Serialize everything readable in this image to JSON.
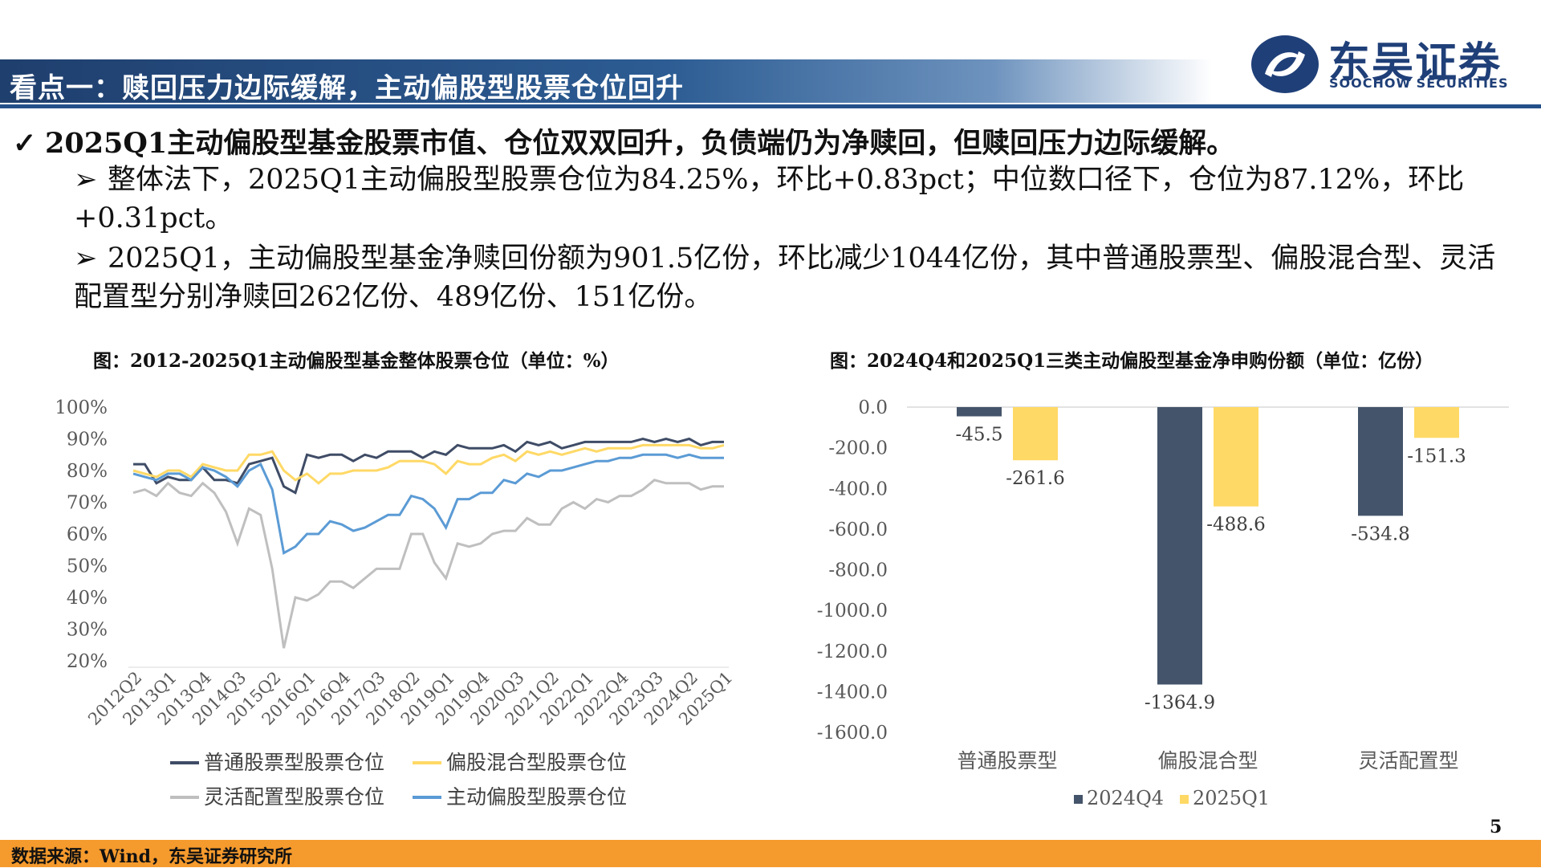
{
  "header": {
    "title": "看点一：赎回压力边际缓解，主动偏股型股票仓位回升",
    "logo_cn": "东吴证券",
    "logo_en": "SOOCHOW SECURITIES"
  },
  "bullets": {
    "check": "✓",
    "main": "2025Q1主动偏股型基金股票市值、仓位双双回升，负债端仍为净赎回，但赎回压力边际缓解。",
    "arrow": "➢",
    "sub1": "整体法下，2025Q1主动偏股型股票仓位为84.25%，环比+0.83pct；中位数口径下，仓位为87.12%，环比+0.31pct。",
    "sub2": "2025Q1，主动偏股型基金净赎回份额为901.5亿份，环比减少1044亿份，其中普通股票型、偏股混合型、灵活配置型分别净赎回262亿份、489亿份、151亿份。"
  },
  "colors": {
    "dark_navy": "#3f4c66",
    "yellow": "#ffd966",
    "gray": "#bfbfbf",
    "blue": "#5b9bd5",
    "orange_footer": "#f59a2d"
  },
  "footer": {
    "source": "数据来源：Wind，东吴证券研究所",
    "page": "5"
  },
  "chart_data": [
    {
      "type": "line",
      "title": "图：2012-2025Q1主动偏股型基金整体股票仓位（单位：%）",
      "ylim": [
        20,
        100
      ],
      "yticks": [
        "100%",
        "90%",
        "80%",
        "70%",
        "60%",
        "50%",
        "40%",
        "30%",
        "20%"
      ],
      "xtick_labels": [
        "2012Q2",
        "2013Q1",
        "2013Q4",
        "2014Q3",
        "2015Q2",
        "2016Q1",
        "2016Q4",
        "2017Q3",
        "2018Q2",
        "2019Q1",
        "2019Q4",
        "2020Q3",
        "2021Q2",
        "2022Q1",
        "2022Q4",
        "2023Q3",
        "2024Q2",
        "2025Q1"
      ],
      "x": [
        "2012Q2",
        "2012Q3",
        "2012Q4",
        "2013Q1",
        "2013Q2",
        "2013Q3",
        "2013Q4",
        "2014Q1",
        "2014Q2",
        "2014Q3",
        "2014Q4",
        "2015Q1",
        "2015Q2",
        "2015Q3",
        "2015Q4",
        "2016Q1",
        "2016Q2",
        "2016Q3",
        "2016Q4",
        "2017Q1",
        "2017Q2",
        "2017Q3",
        "2017Q4",
        "2018Q1",
        "2018Q2",
        "2018Q3",
        "2018Q4",
        "2019Q1",
        "2019Q2",
        "2019Q3",
        "2019Q4",
        "2020Q1",
        "2020Q2",
        "2020Q3",
        "2020Q4",
        "2021Q1",
        "2021Q2",
        "2021Q3",
        "2021Q4",
        "2022Q1",
        "2022Q2",
        "2022Q3",
        "2022Q4",
        "2023Q1",
        "2023Q2",
        "2023Q3",
        "2023Q4",
        "2024Q1",
        "2024Q2",
        "2024Q3",
        "2024Q4",
        "2025Q1"
      ],
      "series": [
        {
          "name": "普通股票型股票仓位",
          "color": "#3f4c66",
          "values": [
            82,
            82,
            76,
            78,
            77,
            77,
            81,
            77,
            77,
            76,
            82,
            83,
            84,
            75,
            73,
            85,
            84,
            85,
            85,
            83,
            85,
            84,
            86,
            86,
            86,
            84,
            86,
            85,
            88,
            87,
            87,
            87,
            88,
            86,
            89,
            88,
            89,
            87,
            88,
            89,
            89,
            89,
            89,
            89,
            90,
            89,
            90,
            89,
            90,
            88,
            89,
            89
          ]
        },
        {
          "name": "偏股混合型股票仓位",
          "color": "#ffd966",
          "values": [
            80,
            79,
            78,
            80,
            80,
            78,
            82,
            81,
            80,
            80,
            85,
            85,
            86,
            80,
            77,
            79,
            76,
            79,
            79,
            80,
            80,
            80,
            81,
            83,
            83,
            83,
            82,
            79,
            83,
            82,
            82,
            84,
            85,
            83,
            86,
            85,
            86,
            85,
            86,
            87,
            86,
            87,
            87,
            87,
            88,
            88,
            88,
            88,
            88,
            87,
            87,
            88
          ]
        },
        {
          "name": "灵活配置型股票仓位",
          "color": "#bfbfbf",
          "values": [
            73,
            74,
            72,
            76,
            73,
            72,
            76,
            73,
            67,
            57,
            68,
            66,
            49,
            24,
            40,
            39,
            41,
            45,
            45,
            43,
            46,
            49,
            49,
            49,
            60,
            60,
            51,
            46,
            57,
            56,
            57,
            60,
            61,
            61,
            65,
            63,
            63,
            68,
            70,
            68,
            71,
            70,
            72,
            72,
            74,
            77,
            76,
            76,
            76,
            74,
            75,
            75
          ]
        },
        {
          "name": "主动偏股型股票仓位",
          "color": "#5b9bd5",
          "values": [
            79,
            78,
            77,
            79,
            79,
            77,
            81,
            80,
            78,
            75,
            80,
            82,
            74,
            54,
            56,
            60,
            60,
            64,
            63,
            61,
            62,
            64,
            66,
            66,
            72,
            71,
            68,
            62,
            71,
            71,
            73,
            73,
            77,
            76,
            79,
            78,
            80,
            80,
            81,
            82,
            83,
            83,
            84,
            84,
            85,
            85,
            85,
            84,
            85,
            84,
            84,
            84
          ]
        }
      ],
      "legend": "bottom",
      "grid": false
    },
    {
      "type": "bar",
      "title": "图：2024Q4和2025Q1三类主动偏股型基金净申购份额（单位：亿份）",
      "categories": [
        "普通股票型",
        "偏股混合型",
        "灵活配置型"
      ],
      "series": [
        {
          "name": "2024Q4",
          "color": "#44546a",
          "values": [
            -45.5,
            -1364.9,
            -534.8
          ],
          "labels": [
            "-45.5",
            "-1364.9",
            "-534.8"
          ]
        },
        {
          "name": "2025Q1",
          "color": "#ffd966",
          "values": [
            -261.6,
            -488.6,
            -151.3
          ],
          "labels": [
            "-261.6",
            "-488.6",
            "-151.3"
          ]
        }
      ],
      "ylim": [
        -1600,
        0
      ],
      "yticks": [
        "0.0",
        "-200.0",
        "-400.0",
        "-600.0",
        "-800.0",
        "-1000.0",
        "-1200.0",
        "-1400.0",
        "-1600.0"
      ],
      "legend": "bottom",
      "grid": true
    }
  ]
}
